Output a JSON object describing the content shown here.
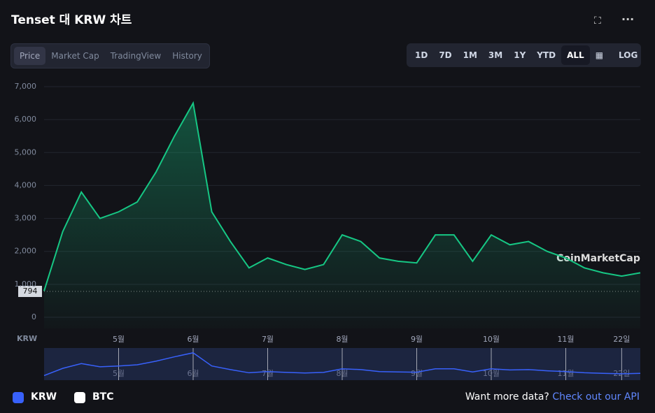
{
  "header": {
    "title": "Tenset 대 KRW 차트"
  },
  "tabs": [
    "Price",
    "Market Cap",
    "TradingView",
    "History"
  ],
  "ranges": [
    "1D",
    "7D",
    "1M",
    "3M",
    "1Y",
    "YTD",
    "ALL"
  ],
  "log_button": "LOG",
  "footer": {
    "legend": [
      "KRW",
      "BTC"
    ],
    "prompt": "Want more data?",
    "link": "Check out our API"
  },
  "chart_data": {
    "type": "line",
    "x_axis_label": "KRW",
    "watermark": "CoinMarketCap",
    "start_label": "794",
    "categories": [
      null,
      null,
      null,
      null,
      "5월",
      null,
      null,
      null,
      "6월",
      null,
      null,
      null,
      "7월",
      null,
      null,
      null,
      "8월",
      null,
      null,
      null,
      "9월",
      null,
      null,
      null,
      "10월",
      null,
      null,
      null,
      "11월",
      null,
      null,
      "22일",
      null
    ],
    "series": [
      {
        "name": "KRW",
        "color": "#16c784",
        "values": [
          800,
          2600,
          3800,
          3000,
          3200,
          3500,
          4400,
          5500,
          6500,
          3200,
          2300,
          1500,
          1800,
          1600,
          1450,
          1600,
          2500,
          2300,
          1800,
          1700,
          1650,
          2500,
          2500,
          1700,
          2500,
          2200,
          2300,
          2000,
          1800,
          1500,
          1350,
          1250,
          1350
        ]
      }
    ],
    "ylim": [
      0,
      7000
    ],
    "yticks": [
      0,
      {
        "value": 1000,
        "label": "1,000"
      },
      {
        "value": 2000,
        "label": "2,000"
      },
      {
        "value": 3000,
        "label": "3,000"
      },
      {
        "value": 4000,
        "label": "4,000"
      },
      {
        "value": 5000,
        "label": "5,000"
      },
      {
        "value": 6000,
        "label": "6,000"
      },
      {
        "value": 7000,
        "label": "7,000"
      }
    ],
    "grid": true
  }
}
